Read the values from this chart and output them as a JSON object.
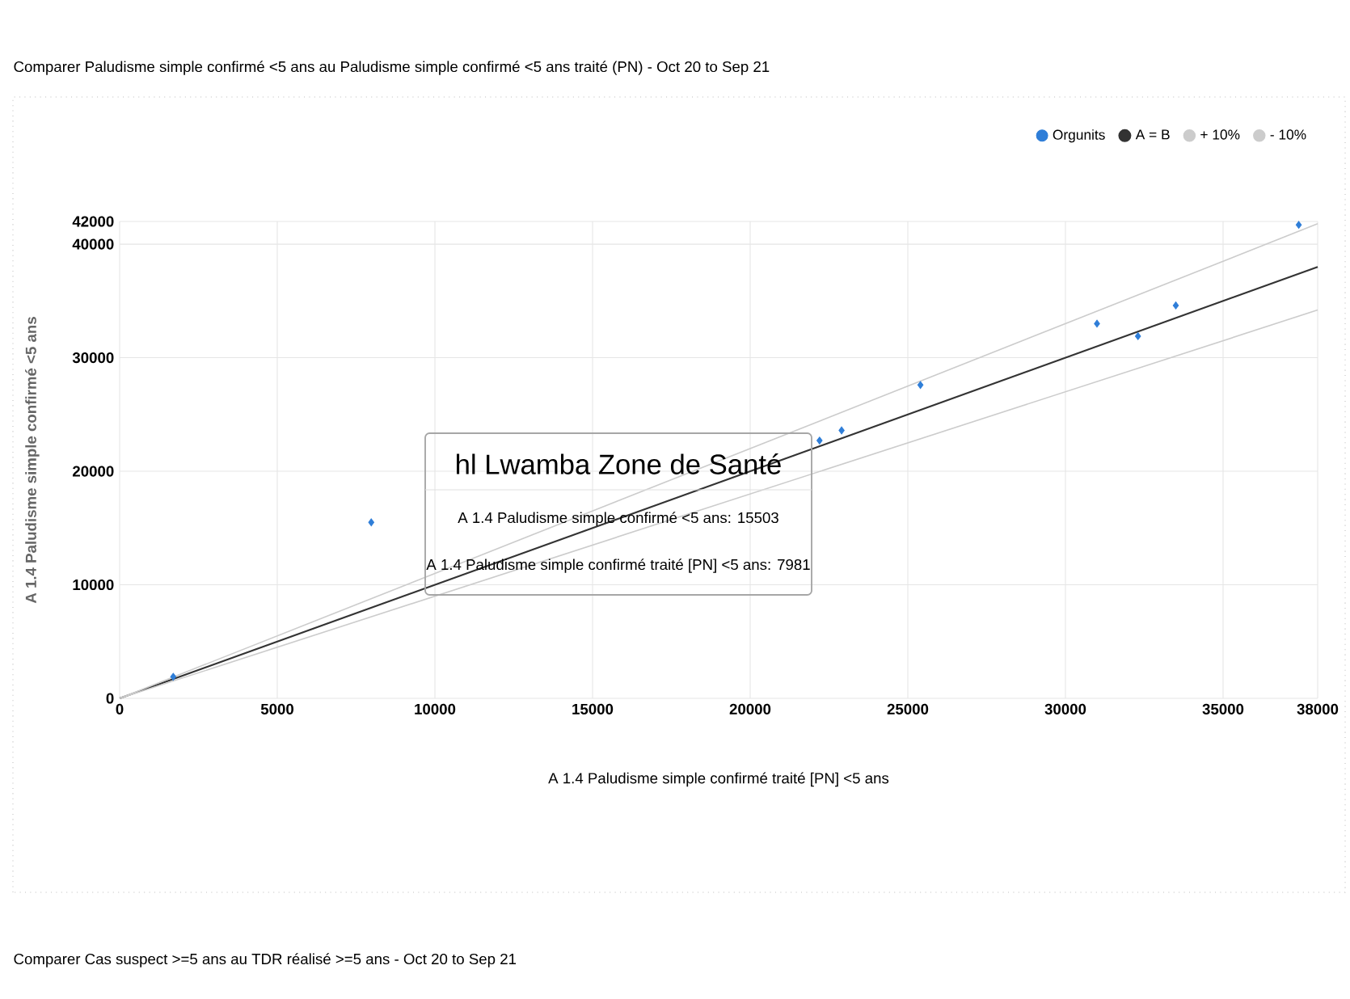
{
  "chart_data": {
    "type": "scatter",
    "title": "Comparer Paludisme simple confirmé <5 ans au Paludisme simple confirmé <5 ans traité (PN) - Oct 20 to Sep 21",
    "xlabel": "A 1.4 Paludisme simple confirmé traité [PN] <5 ans",
    "ylabel": "A 1.4 Paludisme simple confirmé <5 ans",
    "series": [
      {
        "name": "Orgunits",
        "type": "scatter",
        "color": "#2f7ed8",
        "marker": "diamond",
        "x": [
          1700,
          7981,
          22200,
          22900,
          25400,
          31000,
          32300,
          33500,
          37400
        ],
        "values": [
          1900,
          15503,
          22700,
          23600,
          27600,
          33000,
          31900,
          34600,
          41700
        ]
      },
      {
        "name": "A = B",
        "type": "line",
        "color": "#333333",
        "x": [
          0,
          38000
        ],
        "values": [
          0,
          38000
        ]
      },
      {
        "name": "+ 10%",
        "type": "line",
        "color": "#cccccc",
        "x": [
          0,
          38000
        ],
        "values": [
          0,
          41800
        ]
      },
      {
        "name": "- 10%",
        "type": "line",
        "color": "#cccccc",
        "x": [
          0,
          38000
        ],
        "values": [
          0,
          34200
        ]
      }
    ],
    "xlim": [
      0,
      38000
    ],
    "xticks": [
      0,
      5000,
      10000,
      15000,
      20000,
      25000,
      30000,
      35000,
      38000
    ],
    "ylim": [
      0,
      42000
    ],
    "yticks": [
      0,
      10000,
      20000,
      30000,
      40000,
      42000
    ],
    "grid": true,
    "legend": "top right",
    "annotations": [
      "hl Lwamba Zone de Santé",
      "A 1.4 Paludisme simple confirmé <5 ans: 15503",
      "A 1.4 Paludisme simple confirmé traité [PN] <5 ans: 7981",
      "Comparer Cas suspect >=5 ans au TDR réalisé >=5 ans - Oct 20 to Sep 21"
    ]
  }
}
